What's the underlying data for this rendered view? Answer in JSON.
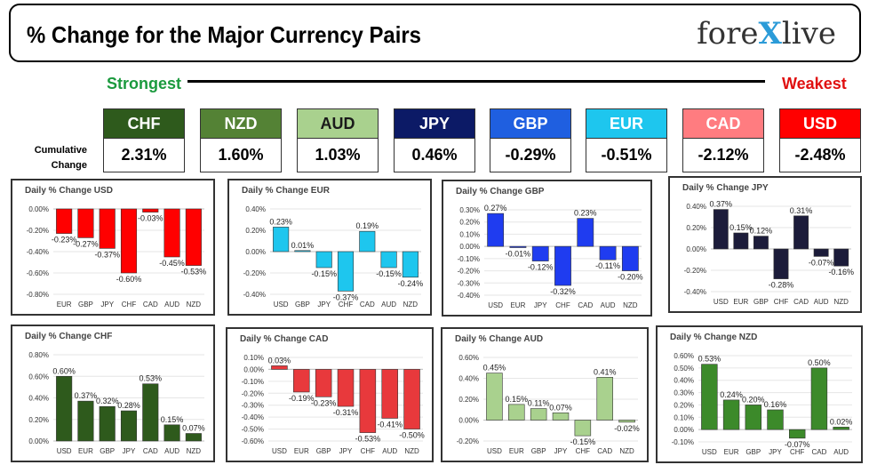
{
  "header": {
    "title": "% Change for the Major Currency Pairs",
    "logo_left": "fore",
    "logo_x": "X",
    "logo_right": "live"
  },
  "strongest_label": "Strongest",
  "weakest_label": "Weakest",
  "cumulative_label_1": "Cumulative",
  "cumulative_label_2": "Change",
  "currencies": [
    {
      "code": "CHF",
      "value": "2.31%",
      "color": "#2e5a1c"
    },
    {
      "code": "NZD",
      "value": "1.60%",
      "color": "#548235"
    },
    {
      "code": "AUD",
      "value": "1.03%",
      "color": "#a9d18e"
    },
    {
      "code": "JPY",
      "value": "0.46%",
      "color": "#0c1a66"
    },
    {
      "code": "GBP",
      "value": "-0.29%",
      "color": "#1f5fe0"
    },
    {
      "code": "EUR",
      "value": "-0.51%",
      "color": "#1ec6ee"
    },
    {
      "code": "CAD",
      "value": "-2.12%",
      "color": "#ff7c80"
    },
    {
      "code": "USD",
      "value": "-2.48%",
      "color": "#ff0000"
    }
  ],
  "chart_data": [
    {
      "type": "bar",
      "title": "Daily % Change USD",
      "color": "#ff0000",
      "categories": [
        "EUR",
        "GBP",
        "JPY",
        "CHF",
        "CAD",
        "AUD",
        "NZD"
      ],
      "values": [
        -0.23,
        -0.27,
        -0.37,
        -0.6,
        -0.03,
        -0.45,
        -0.53
      ],
      "labels": [
        "-0.23%",
        "-0.27%",
        "-0.37%",
        "-0.60%",
        "-0.03%",
        "-0.45%",
        "-0.53%"
      ],
      "ylim": [
        -0.8,
        0.0
      ],
      "ticks": [
        0.0,
        -0.2,
        -0.4,
        -0.6,
        -0.8
      ],
      "tick_labels": [
        "0.00%",
        "-0.20%",
        "-0.40%",
        "-0.60%",
        "-0.80%"
      ]
    },
    {
      "type": "bar",
      "title": "Daily % Change EUR",
      "color": "#1ec6ee",
      "categories": [
        "USD",
        "GBP",
        "JPY",
        "CHF",
        "CAD",
        "AUD",
        "NZD"
      ],
      "values": [
        0.23,
        0.01,
        -0.15,
        -0.37,
        0.19,
        -0.15,
        -0.24
      ],
      "labels": [
        "0.23%",
        "0.01%",
        "-0.15%",
        "-0.37%",
        "0.19%",
        "-0.15%",
        "-0.24%"
      ],
      "ylim": [
        -0.4,
        0.4
      ],
      "ticks": [
        0.4,
        0.2,
        0.0,
        -0.2,
        -0.4
      ],
      "tick_labels": [
        "0.40%",
        "0.20%",
        "0.00%",
        "-0.20%",
        "-0.40%"
      ]
    },
    {
      "type": "bar",
      "title": "Daily % Change GBP",
      "color": "#1f3cf0",
      "categories": [
        "USD",
        "EUR",
        "JPY",
        "CHF",
        "CAD",
        "AUD",
        "NZD"
      ],
      "values": [
        0.27,
        -0.01,
        -0.12,
        -0.32,
        0.23,
        -0.11,
        -0.2
      ],
      "labels": [
        "0.27%",
        "-0.01%",
        "-0.12%",
        "-0.32%",
        "0.23%",
        "-0.11%",
        "-0.20%"
      ],
      "ylim": [
        -0.4,
        0.3
      ],
      "ticks": [
        0.3,
        0.2,
        0.1,
        0.0,
        -0.1,
        -0.2,
        -0.3,
        -0.4
      ],
      "tick_labels": [
        "0.30%",
        "0.20%",
        "0.10%",
        "0.00%",
        "-0.10%",
        "-0.20%",
        "-0.30%",
        "-0.40%"
      ]
    },
    {
      "type": "bar",
      "title": "Daily % Change JPY",
      "color": "#1c1c3a",
      "categories": [
        "USD",
        "EUR",
        "GBP",
        "CHF",
        "CAD",
        "AUD",
        "NZD"
      ],
      "values": [
        0.37,
        0.15,
        0.12,
        -0.28,
        0.31,
        -0.07,
        -0.16
      ],
      "labels": [
        "0.37%",
        "0.15%",
        "0.12%",
        "-0.28%",
        "0.31%",
        "-0.07%",
        "-0.16%"
      ],
      "ylim": [
        -0.4,
        0.4
      ],
      "ticks": [
        0.4,
        0.2,
        0.0,
        -0.2,
        -0.4
      ],
      "tick_labels": [
        "0.40%",
        "0.20%",
        "0.00%",
        "-0.20%",
        "-0.40%"
      ]
    },
    {
      "type": "bar",
      "title": "Daily % Change CHF",
      "color": "#2e5a1c",
      "categories": [
        "USD",
        "EUR",
        "GBP",
        "JPY",
        "CAD",
        "AUD",
        "NZD"
      ],
      "values": [
        0.6,
        0.37,
        0.32,
        0.28,
        0.53,
        0.15,
        0.07
      ],
      "labels": [
        "0.60%",
        "0.37%",
        "0.32%",
        "0.28%",
        "0.53%",
        "0.15%",
        "0.07%"
      ],
      "ylim": [
        0.0,
        0.8
      ],
      "ticks": [
        0.8,
        0.6,
        0.4,
        0.2,
        0.0
      ],
      "tick_labels": [
        "0.80%",
        "0.60%",
        "0.40%",
        "0.20%",
        "0.00%"
      ]
    },
    {
      "type": "bar",
      "title": "Daily % Change CAD",
      "color": "#e8393c",
      "categories": [
        "USD",
        "EUR",
        "GBP",
        "JPY",
        "CHF",
        "AUD",
        "NZD"
      ],
      "values": [
        0.03,
        -0.19,
        -0.23,
        -0.31,
        -0.53,
        -0.41,
        -0.5
      ],
      "labels": [
        "0.03%",
        "-0.19%",
        "-0.23%",
        "-0.31%",
        "-0.53%",
        "-0.41%",
        "-0.50%"
      ],
      "ylim": [
        -0.6,
        0.1
      ],
      "ticks": [
        0.1,
        0.0,
        -0.1,
        -0.2,
        -0.3,
        -0.4,
        -0.5,
        -0.6
      ],
      "tick_labels": [
        "0.10%",
        "0.00%",
        "-0.10%",
        "-0.20%",
        "-0.30%",
        "-0.40%",
        "-0.50%",
        "-0.60%"
      ]
    },
    {
      "type": "bar",
      "title": "Daily % Change AUD",
      "color": "#a9d18e",
      "categories": [
        "USD",
        "EUR",
        "GBP",
        "JPY",
        "CHF",
        "CAD",
        "NZD"
      ],
      "values": [
        0.45,
        0.15,
        0.11,
        0.07,
        -0.15,
        0.41,
        -0.02
      ],
      "labels": [
        "0.45%",
        "0.15%",
        "0.11%",
        "0.07%",
        "-0.15%",
        "0.41%",
        "-0.02%"
      ],
      "ylim": [
        -0.2,
        0.6
      ],
      "ticks": [
        0.6,
        0.4,
        0.2,
        0.0,
        -0.2
      ],
      "tick_labels": [
        "0.60%",
        "0.40%",
        "0.20%",
        "0.00%",
        "-0.20%"
      ]
    },
    {
      "type": "bar",
      "title": "Daily % Change NZD",
      "color": "#3c8a2a",
      "categories": [
        "USD",
        "EUR",
        "GBP",
        "JPY",
        "CHF",
        "CAD",
        "AUD"
      ],
      "values": [
        0.53,
        0.24,
        0.2,
        0.16,
        -0.07,
        0.5,
        0.02
      ],
      "labels": [
        "0.53%",
        "0.24%",
        "0.20%",
        "0.16%",
        "-0.07%",
        "0.50%",
        "0.02%"
      ],
      "ylim": [
        -0.1,
        0.6
      ],
      "ticks": [
        0.6,
        0.5,
        0.4,
        0.3,
        0.2,
        0.1,
        0.0,
        -0.1
      ],
      "tick_labels": [
        "0.60%",
        "0.50%",
        "0.40%",
        "0.30%",
        "0.20%",
        "0.10%",
        "0.00%",
        "-0.10%"
      ]
    }
  ]
}
